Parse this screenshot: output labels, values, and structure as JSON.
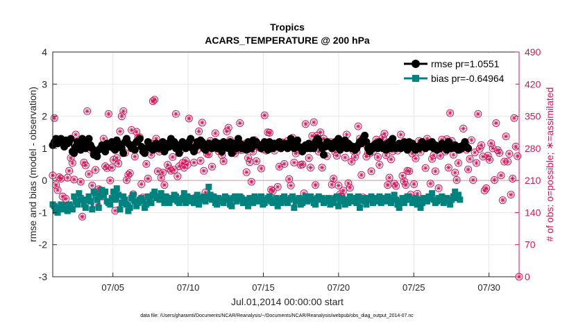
{
  "chart_data": {
    "type": "line",
    "title": "Tropics",
    "subtitle": "ACARS_TEMPERATURE @ 200 hPa",
    "xlabel": "Jul.01,2014 00:00:00 start",
    "ylabel_left": "rmse and bias (model - observation)",
    "ylabel_right": "# of obs: o=possible; ∗=assimilated",
    "footnote": "data file: /Users/gharamti/Documents/NCAR/Reanalysis/~/Documents/NCAR/Reanalysis/webpub/obs_diag_output_2014-07.nc",
    "xlim": [
      1.0,
      32.0
    ],
    "ylim_left": [
      -3,
      4
    ],
    "ylim_right": [
      0,
      490
    ],
    "x_ticks": [
      5,
      10,
      15,
      20,
      25,
      30
    ],
    "x_tick_labels": [
      "07/05",
      "07/10",
      "07/15",
      "07/20",
      "07/25",
      "07/30"
    ],
    "y_ticks_left": [
      -3,
      -2,
      -1,
      0,
      1,
      2,
      3,
      4
    ],
    "y_ticks_right": [
      0,
      70,
      140,
      210,
      280,
      350,
      420,
      490
    ],
    "grid": true,
    "legend_position": "top-right",
    "colors": {
      "rmse": "#000000",
      "bias": "#00827f",
      "obs": "#d4145a",
      "zero_line": "#c8a0a0"
    },
    "series": [
      {
        "name": "rmse pr=1.0551",
        "marker": "circle",
        "values": [
          1.1,
          1.2,
          1.3,
          1.15,
          1.25,
          1.3,
          1.2,
          1.05,
          1.25,
          1.15,
          1.2,
          1.3,
          0.9,
          0.85,
          1.05,
          1.2,
          1.0,
          0.95,
          1.3,
          1.1,
          1.0,
          1.2,
          1.3,
          1.1,
          1.0,
          0.8,
          0.85,
          0.75,
          0.95,
          1.0,
          1.1,
          1.05,
          0.9,
          1.15,
          1.1,
          1.05,
          1.2,
          1.0,
          0.95,
          1.25,
          1.15,
          1.1,
          1.0,
          0.85,
          1.2,
          1.3,
          1.15,
          1.1,
          1.0,
          1.1,
          0.95,
          1.2,
          1.25,
          1.3,
          1.05,
          0.9,
          0.85,
          1.0,
          1.2,
          1.1,
          1.0,
          0.95,
          1.1,
          1.15,
          1.0,
          1.1,
          1.05,
          1.2,
          0.9,
          1.0,
          1.15,
          1.05,
          1.3,
          1.1,
          1.2,
          1.0,
          1.1,
          0.85,
          1.05,
          1.2,
          1.15,
          1.0,
          1.1,
          1.2,
          1.3,
          1.0,
          0.9,
          1.05,
          1.2,
          1.1,
          1.25,
          1.2,
          1.0,
          0.95,
          1.05,
          1.15,
          1.1,
          1.0,
          1.1,
          1.2,
          1.0,
          1.15,
          1.1,
          0.9,
          1.2,
          1.05,
          1.1,
          1.0,
          1.2,
          0.85,
          1.15,
          1.05,
          1.0,
          1.3,
          1.15,
          1.0,
          1.1,
          1.05,
          0.95,
          1.2,
          1.1,
          1.0,
          1.25,
          1.15,
          1.2,
          1.1,
          1.1,
          1.0,
          1.05,
          1.2,
          1.1,
          0.95,
          1.2,
          1.15,
          1.0,
          1.15,
          1.1,
          1.05,
          1.2,
          1.0,
          1.05,
          1.15,
          1.1,
          1.0,
          1.15,
          1.3,
          1.1,
          1.0,
          1.2,
          1.25,
          1.05,
          1.0,
          0.9,
          1.05,
          1.1,
          1.0,
          1.15,
          1.0,
          1.05,
          1.0,
          1.2,
          1.3,
          1.25,
          1.1,
          1.0,
          0.8,
          1.05,
          1.2,
          1.1,
          1.15,
          1.0,
          1.1,
          1.2,
          1.05,
          1.3,
          0.95,
          1.1,
          1.2,
          1.25,
          1.0,
          1.15,
          1.1,
          1.0,
          1.05,
          0.95,
          1.0,
          1.1,
          1.2,
          1.15,
          1.3,
          1.4,
          1.2,
          1.0,
          0.9,
          1.05,
          1.0,
          1.1,
          1.15,
          1.0,
          1.2,
          1.05,
          1.0,
          1.1,
          0.95,
          1.15,
          1.2,
          1.0,
          1.3,
          1.1,
          1.0,
          1.05,
          1.15,
          1.0,
          1.1,
          1.2,
          1.05,
          0.95,
          1.2,
          1.1,
          1.15,
          1.0,
          0.95,
          1.05,
          1.0,
          1.1,
          1.2,
          1.05,
          1.0,
          1.1,
          1.15,
          1.05,
          1.2,
          1.0,
          1.1,
          0.95,
          1.05,
          1.0,
          1.15,
          1.1,
          1.05,
          0.95,
          1.2,
          1.1,
          1.0,
          1.05,
          1.1,
          1.0,
          0.95,
          1.05,
          1.0,
          1.1,
          1.2,
          1.05,
          1.0
        ]
      },
      {
        "name": "bias pr=-0.64964",
        "marker": "square",
        "values": [
          -0.75,
          -0.8,
          -0.95,
          -1.0,
          -0.85,
          -0.75,
          -0.9,
          -0.8,
          -0.85,
          -0.95,
          -0.75,
          -0.8,
          -0.9,
          -0.5,
          -0.65,
          -0.75,
          -0.4,
          -0.55,
          -0.6,
          -0.75,
          -0.85,
          -0.6,
          -0.5,
          -0.65,
          -0.9,
          -0.35,
          -0.4,
          -0.6,
          -0.85,
          -0.5,
          -0.3,
          -0.45,
          -0.35,
          -0.65,
          -0.7,
          -0.75,
          -0.55,
          -0.35,
          -0.6,
          -0.25,
          -0.45,
          -0.9,
          -0.7,
          -0.5,
          -0.6,
          -0.75,
          -0.95,
          -0.85,
          -0.55,
          -0.45,
          -0.65,
          -0.8,
          -0.7,
          -0.6,
          -0.55,
          -0.65,
          -0.85,
          -0.75,
          -0.5,
          -0.6,
          -0.7,
          -0.45,
          -0.35,
          -0.55,
          -0.5,
          -0.6,
          -0.4,
          -0.55,
          -0.7,
          -0.5,
          -0.65,
          -0.7,
          -0.55,
          -0.6,
          -0.45,
          -0.5,
          -0.65,
          -0.7,
          -0.6,
          -0.55,
          -0.4,
          -0.7,
          -0.5,
          -0.6,
          -0.65,
          -0.55,
          -0.7,
          -0.6,
          -0.45,
          -0.75,
          -0.55,
          -0.6,
          -0.5,
          -0.65,
          -0.55,
          -0.2,
          -0.45,
          -0.6,
          -0.5,
          -0.7,
          -0.75,
          -0.55,
          -0.6,
          -0.65,
          -0.7,
          -0.5,
          -0.55,
          -0.6,
          -0.75,
          -0.8,
          -0.55,
          -0.5,
          -0.65,
          -0.6,
          -0.5,
          -0.55,
          -0.7,
          -0.6,
          -0.65,
          -0.8,
          -0.55,
          -0.6,
          -0.7,
          -0.5,
          -0.55,
          -0.65,
          -0.6,
          -0.5,
          -0.75,
          -0.7,
          -0.6,
          -0.55,
          -0.5,
          -0.65,
          -0.7,
          -0.6,
          -0.55,
          -0.8,
          -0.6,
          -0.7,
          -0.55,
          -0.5,
          -0.65,
          -0.7,
          -0.6,
          -0.55,
          -0.5,
          -0.85,
          -0.65,
          -0.6,
          -0.55,
          -0.75,
          -0.7,
          -0.6,
          -0.5,
          -0.65,
          -0.55,
          -0.5,
          -0.6,
          -0.7,
          -0.75,
          -0.55,
          -0.5,
          -0.6,
          -0.55,
          -0.7,
          -0.6,
          -0.65,
          -0.55,
          -0.75,
          -0.6,
          -0.7,
          -0.55,
          -0.5,
          -0.8,
          -0.6,
          -0.55,
          -0.65,
          -0.75,
          -0.6,
          -0.7,
          -0.5,
          -0.65,
          -0.55,
          -0.6,
          -0.7,
          -0.5,
          -0.85,
          -0.6,
          -0.55,
          -0.65,
          -0.75,
          -0.55,
          -0.6,
          -0.5,
          -0.7,
          -0.55,
          -0.65,
          -0.6,
          -0.5,
          -0.7,
          -0.6,
          -0.55,
          -0.65,
          -0.5,
          -0.6,
          -0.7,
          -0.55,
          -0.45,
          -0.6,
          -0.75,
          -0.85,
          -0.65,
          -0.55,
          -0.7,
          -0.6,
          -0.5,
          -0.55,
          -0.6,
          -0.7,
          -0.65,
          -0.55,
          -0.75,
          -0.6,
          -0.85,
          -0.7,
          -0.55,
          -0.6,
          -0.65,
          -0.5,
          -0.55,
          -0.4,
          -0.6,
          -0.7,
          -0.65,
          -0.55,
          -0.6,
          -0.5,
          -0.7,
          -0.6,
          -0.55,
          -0.65,
          -0.75,
          -0.6,
          -0.5,
          -0.35,
          -0.55,
          -0.45,
          -0.6
        ]
      },
      {
        "name": "# of obs possible",
        "axis": "right",
        "marker": "circle-open",
        "values": [
          221,
          346,
          200,
          189,
          217,
          214,
          175,
          154,
          170,
          216,
          231,
          259,
          248,
          212,
          310,
          279,
          171,
          207,
          131,
          249,
          243,
          361,
          224,
          277,
          199,
          270,
          233,
          157,
          191,
          189,
          175,
          301,
          241,
          237,
          355,
          210,
          238,
          255,
          144,
          259,
          247,
          317,
          350,
          361,
          270,
          211,
          222,
          226,
          320,
          180,
          262,
          316,
          303,
          304,
          202,
          173,
          271,
          246,
          214,
          292,
          266,
          383,
          386,
          301,
          230,
          273,
          216,
          227,
          200,
          286,
          244,
          236,
          231,
          261,
          233,
          355,
          219,
          241,
          276,
          248,
          238,
          253,
          244,
          345,
          286,
          281,
          249,
          173,
          277,
          317,
          253,
          336,
          231,
          184,
          268,
          267,
          296,
          240,
          286,
          313,
          282,
          274,
          285,
          265,
          252,
          284,
          317,
          325,
          298,
          276,
          272,
          269,
          286,
          277,
          335,
          276,
          279,
          290,
          228,
          259,
          250,
          207,
          273,
          298,
          252,
          285,
          281,
          236,
          278,
          352,
          275,
          315,
          314,
          190,
          187,
          275,
          286,
          196,
          240,
          280,
          293,
          246,
          284,
          296,
          213,
          199,
          303,
          249,
          269,
          284,
          277,
          244,
          245,
          182,
          333,
          285,
          259,
          238,
          307,
          337,
          200,
          308,
          273,
          315,
          238,
          301,
          284,
          263,
          285,
          294,
          201,
          214,
          272,
          264,
          199,
          180,
          175,
          188,
          260,
          310,
          204,
          194,
          251,
          275,
          261,
          272,
          328,
          301,
          222,
          173,
          290,
          262,
          270,
          269,
          230,
          273,
          289,
          299,
          261,
          244,
          293,
          303,
          312,
          265,
          200,
          216,
          256,
          274,
          203,
          198,
          275,
          286,
          310,
          220,
          208,
          200,
          231,
          230,
          179,
          269,
          202,
          258,
          181,
          296,
          272,
          284,
          286,
          237,
          301,
          292,
          203,
          257,
          265,
          230,
          280,
          193,
          264,
          299,
          285,
          273,
          300,
          238,
          357,
          296,
          266,
          227,
          211,
          248,
          277,
          279,
          323,
          288,
          277,
          234,
          257,
          298,
          211,
          271,
          248,
          355,
          279,
          287,
          262,
          188,
          193,
          264,
          255,
          291,
          280,
          211,
          335,
          276,
          270,
          221,
          167,
          251,
          306,
          251,
          268,
          179,
          214,
          346,
          284,
          263,
          0
        ]
      }
    ]
  }
}
